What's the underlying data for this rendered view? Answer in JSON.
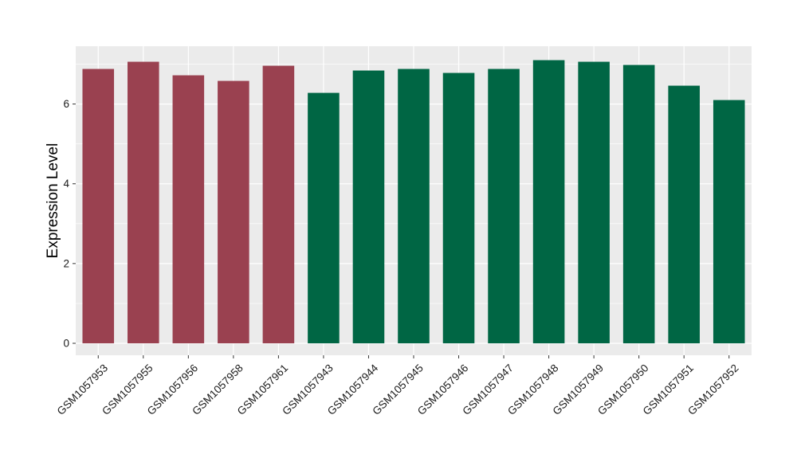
{
  "chart_data": {
    "type": "bar",
    "title": "",
    "xlabel": "",
    "ylabel": "Expression Level",
    "ylim": [
      -0.3,
      7.45
    ],
    "yticks": [
      0,
      2,
      4,
      6
    ],
    "grid": true,
    "legend": "none",
    "categories": [
      "GSM1057953",
      "GSM1057955",
      "GSM1057956",
      "GSM1057958",
      "GSM1057961",
      "GSM1057943",
      "GSM1057944",
      "GSM1057945",
      "GSM1057946",
      "GSM1057947",
      "GSM1057948",
      "GSM1057949",
      "GSM1057950",
      "GSM1057951",
      "GSM1057952"
    ],
    "values": [
      6.88,
      7.06,
      6.72,
      6.58,
      6.96,
      6.28,
      6.84,
      6.88,
      6.78,
      6.88,
      7.1,
      7.06,
      6.98,
      6.46,
      6.1
    ],
    "bar_colors": [
      "#9a4150",
      "#9a4150",
      "#9a4150",
      "#9a4150",
      "#9a4150",
      "#006644",
      "#006644",
      "#006644",
      "#006644",
      "#006644",
      "#006644",
      "#006644",
      "#006644",
      "#006644",
      "#006644"
    ],
    "panel_background": "#ebebeb",
    "gridline_color": "#ffffff",
    "text_color": "#000000"
  }
}
